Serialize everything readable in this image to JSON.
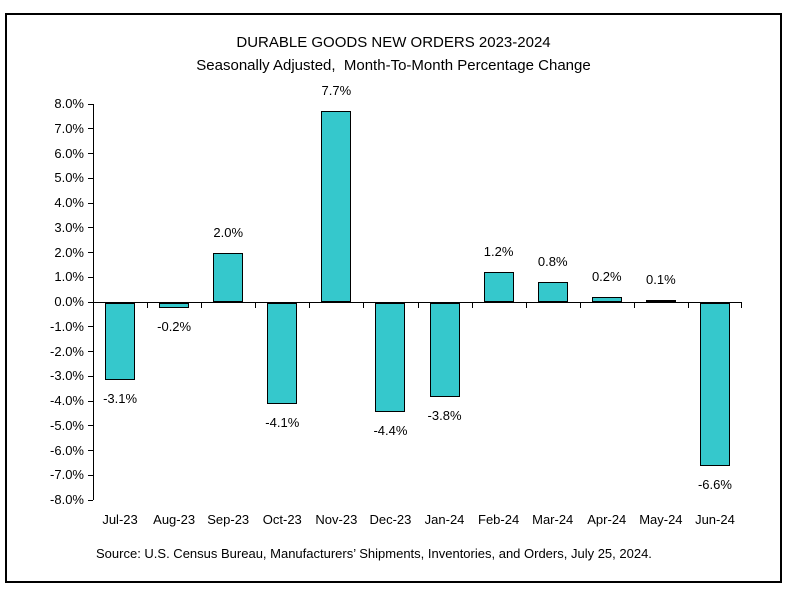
{
  "chart_data": {
    "type": "bar",
    "title": "DURABLE GOODS NEW ORDERS 2023-2024",
    "subtitle": "Seasonally Adjusted,  Month-To-Month Percentage Change",
    "categories": [
      "Jul-23",
      "Aug-23",
      "Sep-23",
      "Oct-23",
      "Nov-23",
      "Dec-23",
      "Jan-24",
      "Feb-24",
      "Mar-24",
      "Apr-24",
      "May-24",
      "Jun-24"
    ],
    "values": [
      -3.1,
      -0.2,
      2.0,
      -4.1,
      7.7,
      -4.4,
      -3.8,
      1.2,
      0.8,
      0.2,
      0.1,
      -6.6
    ],
    "bar_labels": [
      "-3.1%",
      "-0.2%",
      "2.0%",
      "-4.1%",
      "7.7%",
      "-4.4%",
      "-3.8%",
      "1.2%",
      "0.8%",
      "0.2%",
      "0.1%",
      "-6.6%"
    ],
    "y_tick_labels": [
      "8.0%",
      "7.0%",
      "6.0%",
      "5.0%",
      "4.0%",
      "3.0%",
      "2.0%",
      "1.0%",
      "0.0%",
      "-1.0%",
      "-2.0%",
      "-3.0%",
      "-4.0%",
      "-5.0%",
      "-6.0%",
      "-7.0%",
      "-8.0%"
    ],
    "ylim": [
      -8,
      8
    ],
    "ytick_step": 1,
    "xlabel": "",
    "ylabel": "",
    "grid": false,
    "legend": "none",
    "bar_color": "#35C8CC",
    "bar_border_color": "#000000",
    "axis_color": "#000000",
    "text_color": "#000000",
    "source_note": "Source: U.S. Census Bureau, Manufacturers’ Shipments, Inventories, and Orders, July 25, 2024."
  }
}
